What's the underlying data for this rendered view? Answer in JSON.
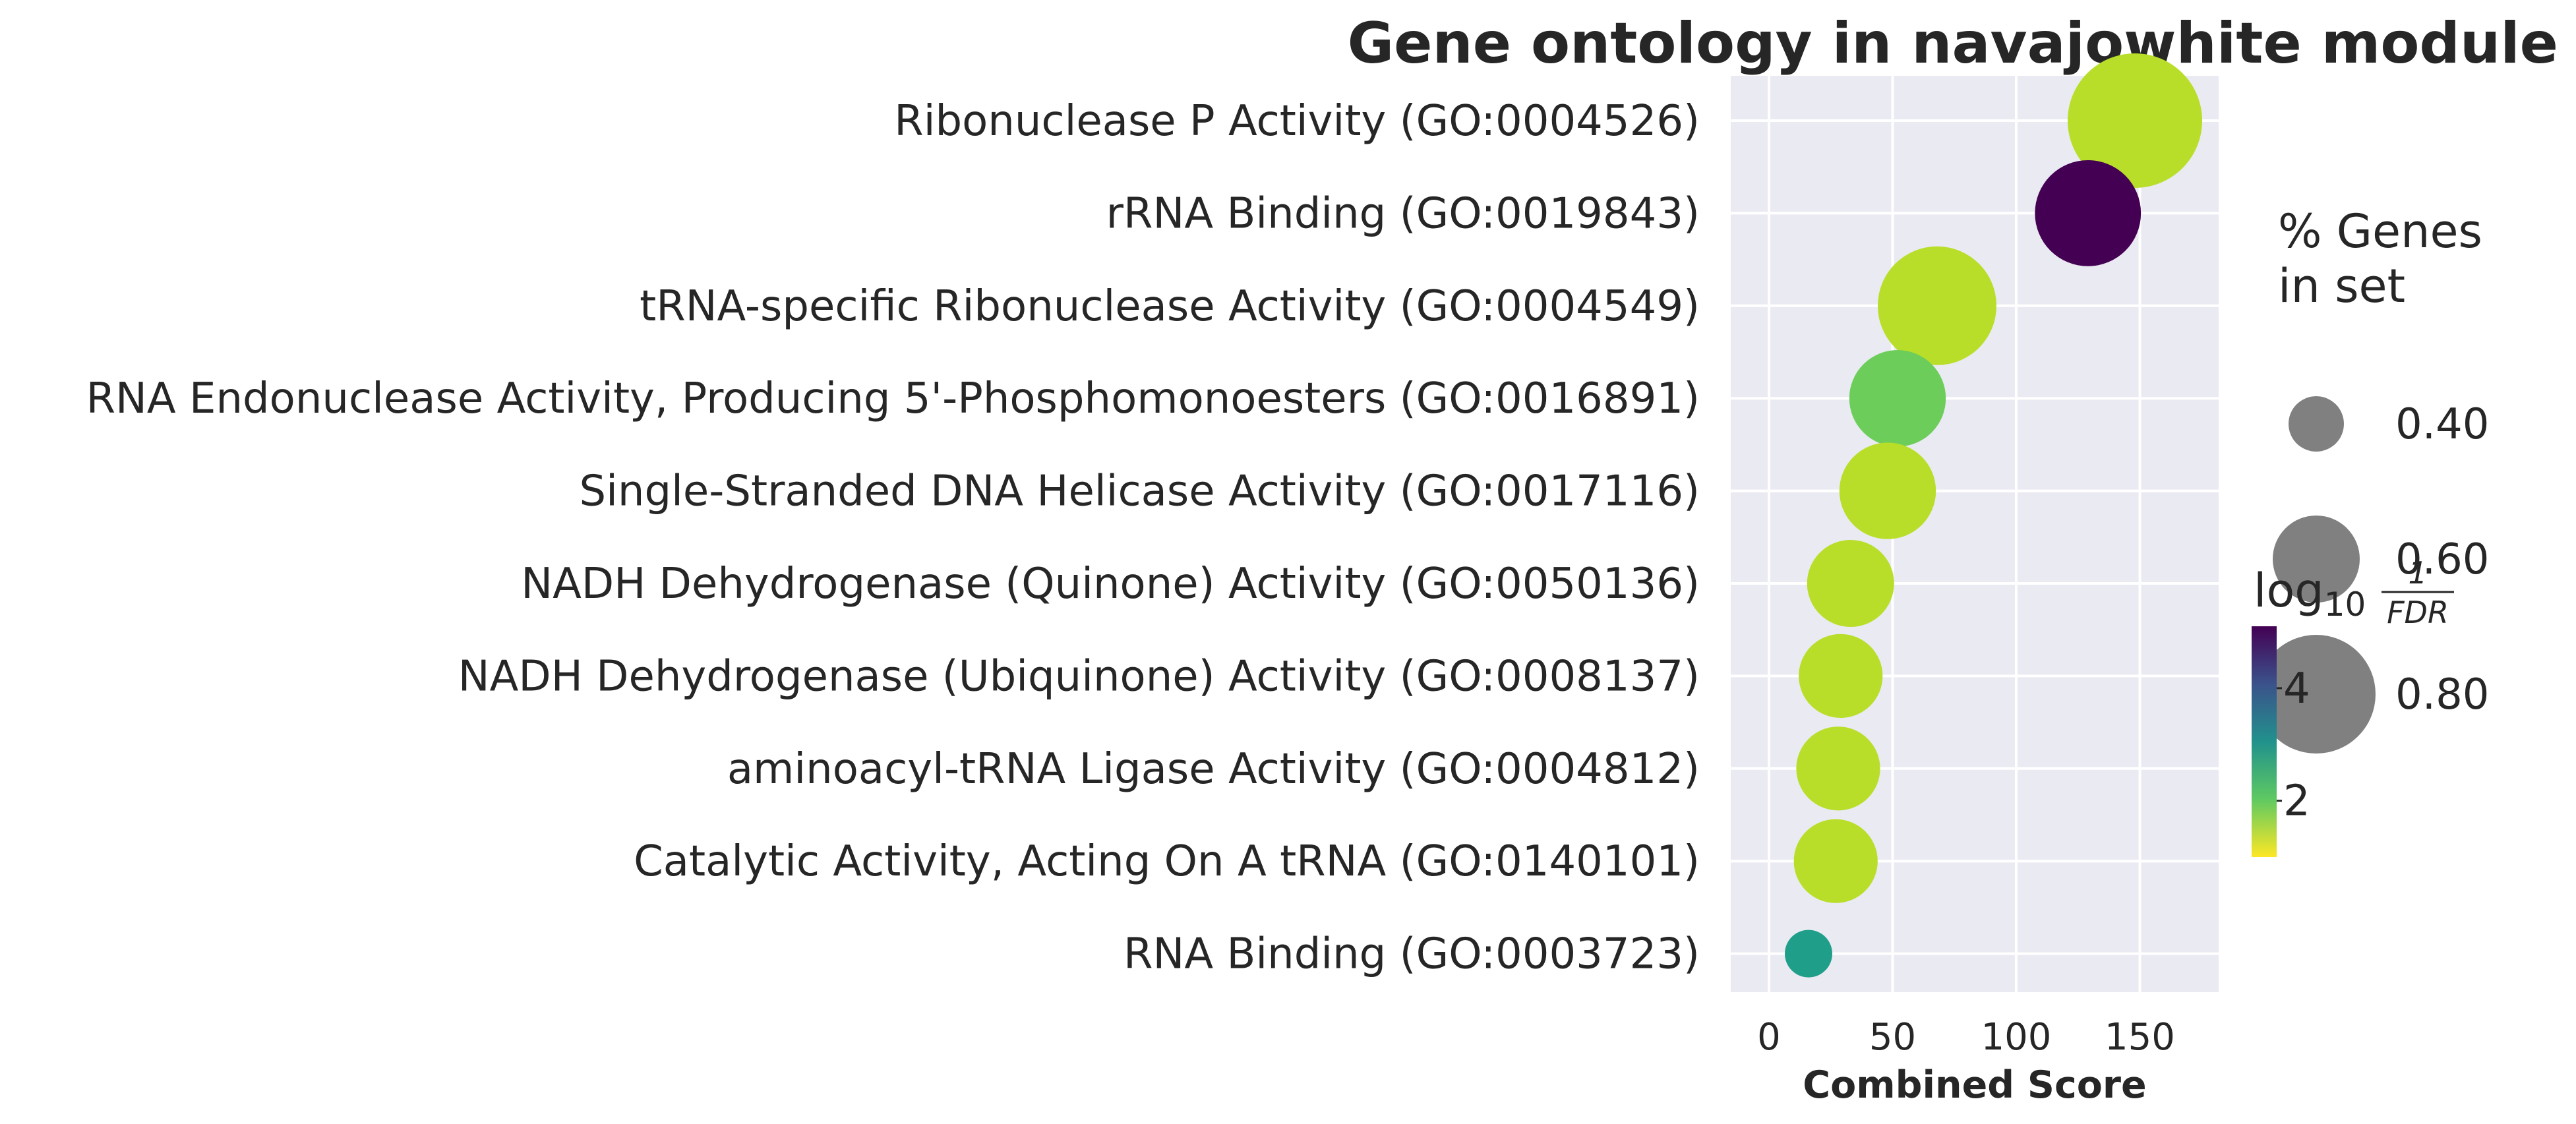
{
  "chart_data": {
    "type": "scatter",
    "title": "Gene ontology in navajowhite module",
    "xlabel": "Combined Score",
    "ylabel": "",
    "xlim": [
      -15,
      180
    ],
    "xticks": [
      0,
      50,
      100,
      150
    ],
    "grid": true,
    "categories": [
      "Ribonuclease P Activity (GO:0004526)",
      "rRNA Binding (GO:0019843)",
      "tRNA-specific Ribonuclease Activity (GO:0004549)",
      "RNA Endonuclease Activity, Producing 5'-Phosphomonoesters (GO:0016891)",
      "Single-Stranded DNA Helicase Activity (GO:0017116)",
      "NADH Dehydrogenase (Quinone) Activity (GO:0050136)",
      "NADH Dehydrogenase (Ubiquinone) Activity (GO:0008137)",
      "aminoacyl-tRNA Ligase Activity (GO:0004812)",
      "Catalytic Activity, Acting On A tRNA (GO:0140101)",
      "RNA Binding (GO:0003723)"
    ],
    "points": [
      {
        "category": "Ribonuclease P Activity (GO:0004526)",
        "x": 148,
        "pct_genes": 0.9,
        "log10_inv_fdr": 1.6,
        "color": "#b8de29"
      },
      {
        "category": "rRNA Binding (GO:0019843)",
        "x": 129,
        "pct_genes": 0.72,
        "log10_inv_fdr": 4.8,
        "color": "#440154"
      },
      {
        "category": "tRNA-specific Ribonuclease Activity (GO:0004549)",
        "x": 68,
        "pct_genes": 0.8,
        "log10_inv_fdr": 1.6,
        "color": "#b8de29"
      },
      {
        "category": "RNA Endonuclease Activity, Producing 5'-Phosphomonoesters (GO:0016891)",
        "x": 52,
        "pct_genes": 0.66,
        "log10_inv_fdr": 2.2,
        "color": "#6ccd5a"
      },
      {
        "category": "Single-Stranded DNA Helicase Activity (GO:0017116)",
        "x": 48,
        "pct_genes": 0.66,
        "log10_inv_fdr": 1.6,
        "color": "#b8de29"
      },
      {
        "category": "NADH Dehydrogenase (Quinone) Activity (GO:0050136)",
        "x": 33,
        "pct_genes": 0.6,
        "log10_inv_fdr": 1.6,
        "color": "#b8de29"
      },
      {
        "category": "NADH Dehydrogenase (Ubiquinone) Activity (GO:0008137)",
        "x": 29,
        "pct_genes": 0.58,
        "log10_inv_fdr": 1.6,
        "color": "#b8de29"
      },
      {
        "category": "aminoacyl-tRNA Ligase Activity (GO:0004812)",
        "x": 28,
        "pct_genes": 0.58,
        "log10_inv_fdr": 1.6,
        "color": "#b8de29"
      },
      {
        "category": "Catalytic Activity, Acting On A tRNA (GO:0140101)",
        "x": 27,
        "pct_genes": 0.58,
        "log10_inv_fdr": 1.6,
        "color": "#b8de29"
      },
      {
        "category": "RNA Binding (GO:0003723)",
        "x": 16,
        "pct_genes": 0.35,
        "log10_inv_fdr": 3.0,
        "color": "#1f9e89"
      }
    ],
    "size_legend": {
      "title_line1": "% Genes",
      "title_line2": "in set",
      "entries": [
        {
          "label": "0.40",
          "value": 0.4
        },
        {
          "label": "0.60",
          "value": 0.6
        },
        {
          "label": "0.80",
          "value": 0.8
        }
      ],
      "color": "#808080"
    },
    "colorbar": {
      "title_main": "log",
      "title_sub": "10",
      "frac_num": "1",
      "frac_den": "FDR",
      "ticks": [
        {
          "label": "2",
          "value": 2
        },
        {
          "label": "4",
          "value": 4
        }
      ],
      "range": [
        1.0,
        5.1
      ],
      "colormap": "viridis_r"
    },
    "background": "#eaeaf2",
    "grid_color": "#ffffff"
  }
}
